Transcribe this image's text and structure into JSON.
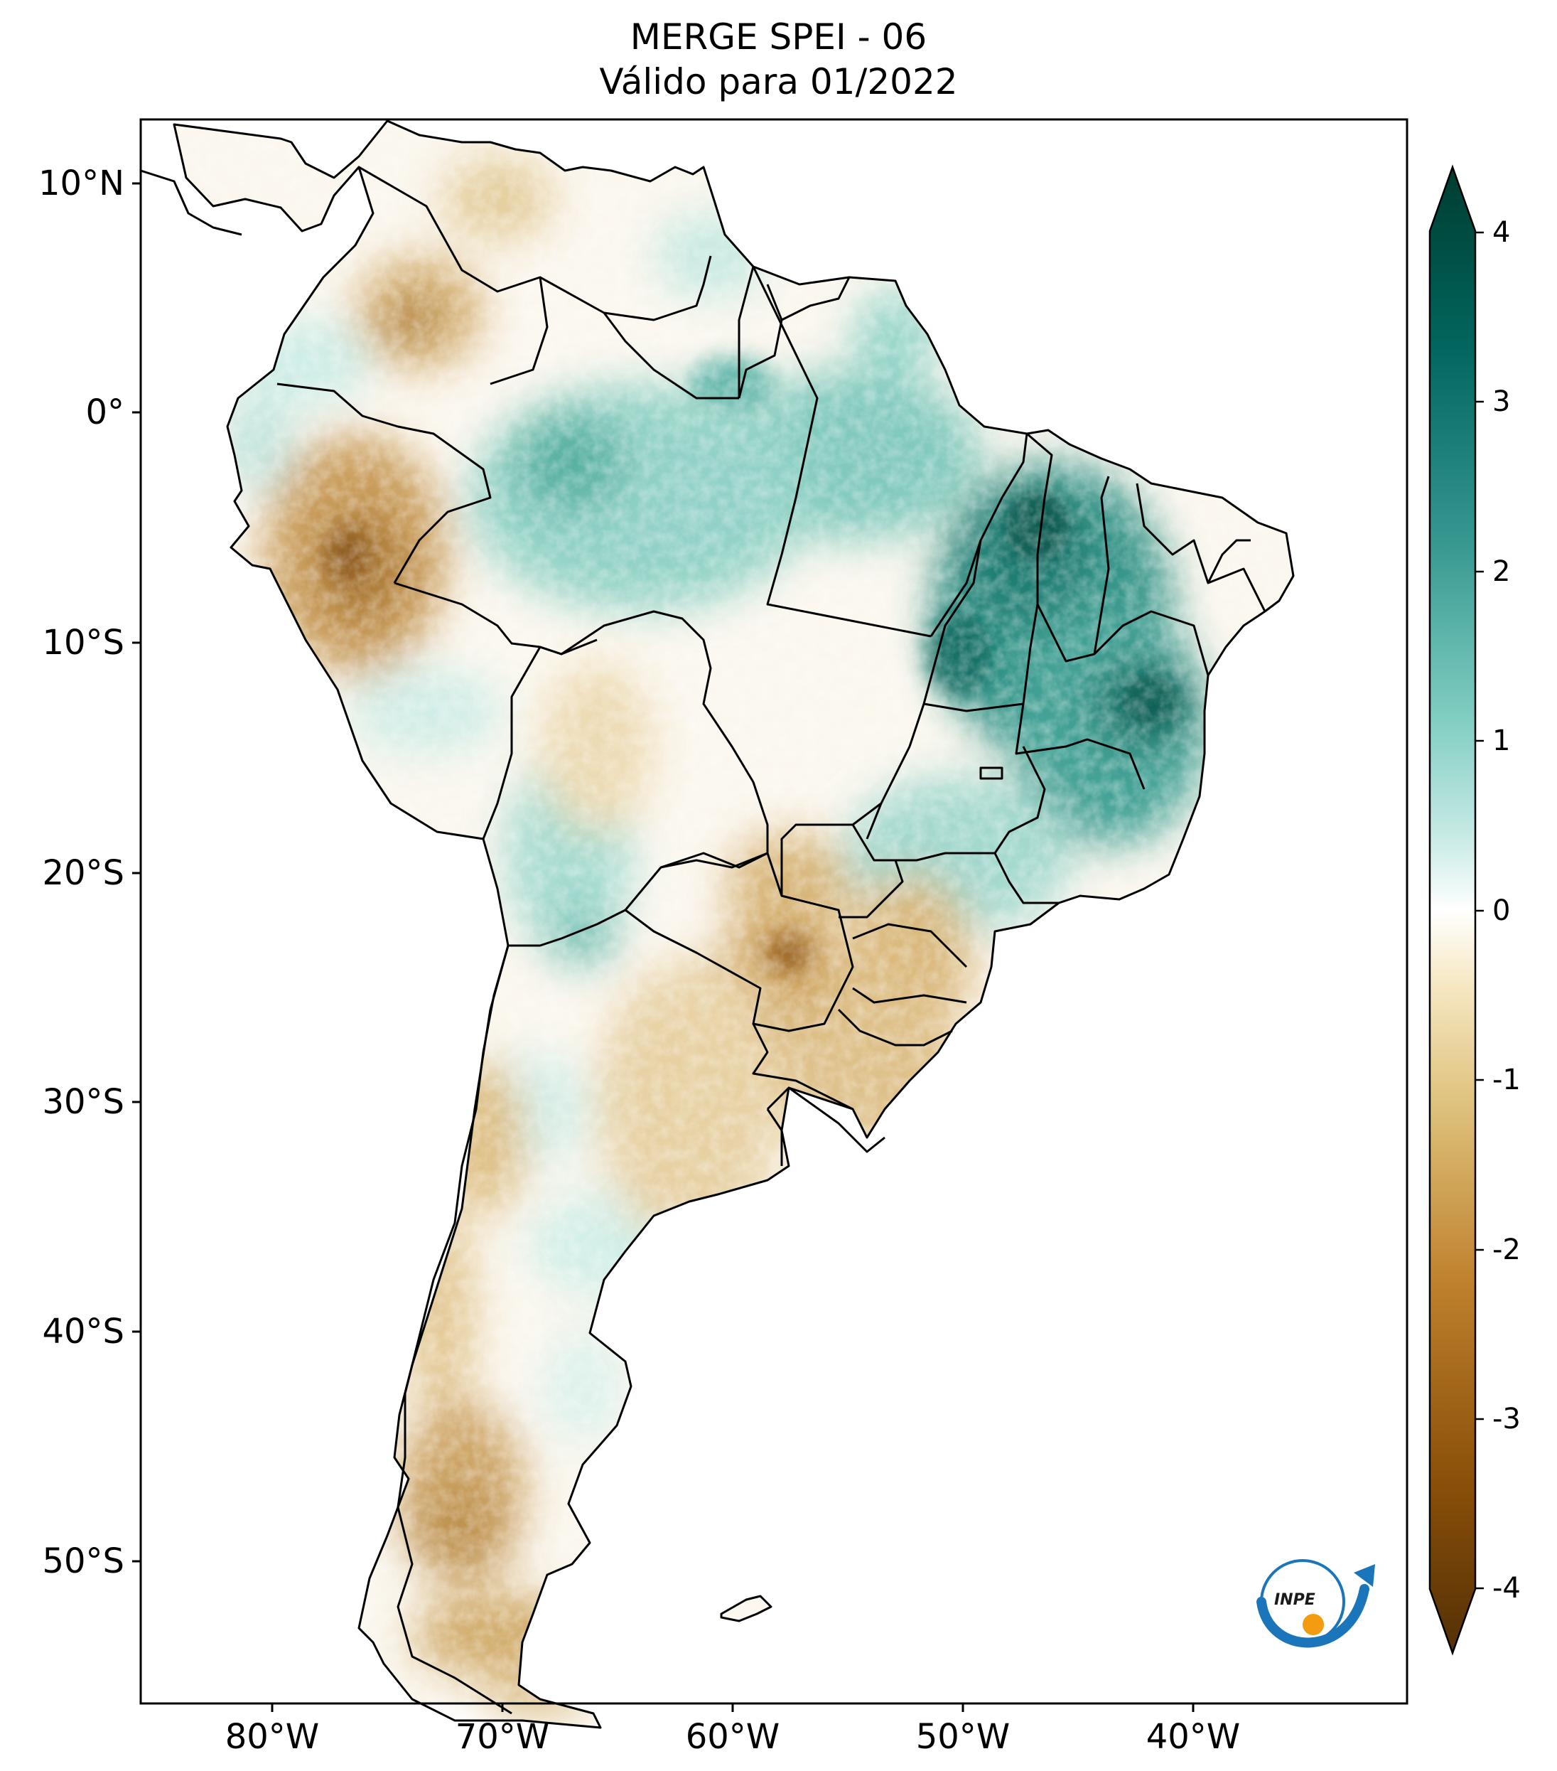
{
  "map": {
    "title_line1": "MERGE   SPEI - 06",
    "title_line2": "Válido para 01/2022",
    "latitude_ticks": [
      "10°N",
      "0°",
      "10°S",
      "20°S",
      "30°S",
      "40°S",
      "50°S"
    ],
    "longitude_ticks": [
      "80°W",
      "70°W",
      "60°W",
      "50°W",
      "40°W"
    ],
    "extent": {
      "lon_min": -85,
      "lon_max": -30,
      "lat_min": -56,
      "lat_max": 13
    }
  },
  "colorbar": {
    "ticks": [
      "4",
      "3",
      "2",
      "1",
      "0",
      "-1",
      "-2",
      "-3",
      "-4"
    ],
    "range": [
      -4,
      4
    ],
    "extend": "both",
    "colormap": "BrBG",
    "color_min": "#543005",
    "color_mid": "#ffffff",
    "color_max": "#003c30"
  },
  "logo": {
    "text": "INPE",
    "icon": "inpe-logo-icon",
    "accent_blue": "#1a75bb",
    "accent_orange": "#f39c12"
  },
  "regions": {
    "wet_anomaly": "Northeast Brazil (Maranhão, Piauí, Bahia, Tocantins)",
    "dry_anomaly": "Southern Brazil, Paraguay, Uruguay, northeast Argentina, Peru"
  }
}
